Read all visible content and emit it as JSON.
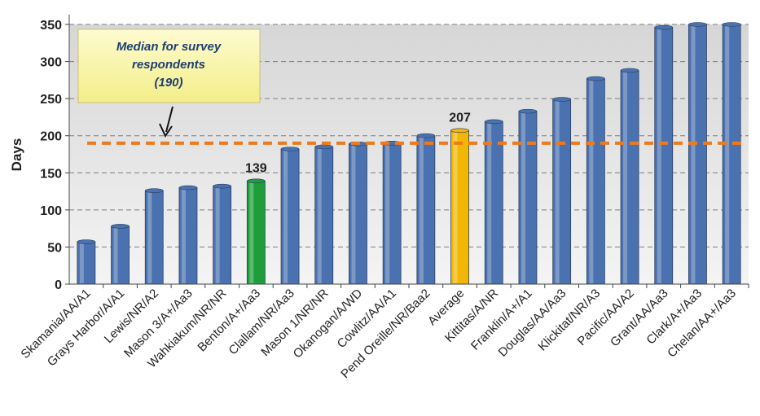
{
  "chart_data": {
    "type": "bar",
    "ylabel": "Days",
    "xlabel": "",
    "title": "",
    "ylim": [
      0,
      350
    ],
    "yticks": [
      0,
      50,
      100,
      150,
      200,
      250,
      300,
      350
    ],
    "grid": true,
    "categories": [
      "Skamania/AA/A1",
      "Grays Harbor/A/A1",
      "Lewis/NR/A2",
      "Mason 3/A+/Aa3",
      "Wahkiakum/NR/NR",
      "Benton/A+/Aa3",
      "Clallam/NR/Aa3",
      "Mason 1/NR/NR",
      "Okanogan/A/WD",
      "Cowlitz/AA/A1",
      "Pend Oreille/NR/Baa2",
      "Average",
      "Kittitas/A/NR",
      "Franklin/A+/A1",
      "Douglas/AA/Aa3",
      "Klickitat/NR/A3",
      "Pacific/AA/A2",
      "Grant/AA/Aa3",
      "Clark/A+/Aa3",
      "Chelan/AA+/Aa3"
    ],
    "values": [
      57,
      78,
      126,
      130,
      132,
      139,
      182,
      185,
      189,
      190,
      200,
      207,
      219,
      233,
      249,
      277,
      288,
      346,
      350,
      350
    ],
    "bar_colors": [
      "#4a72b0",
      "#4a72b0",
      "#4a72b0",
      "#4a72b0",
      "#4a72b0",
      "#1e9e3a",
      "#4a72b0",
      "#4a72b0",
      "#4a72b0",
      "#4a72b0",
      "#4a72b0",
      "#f2b705",
      "#4a72b0",
      "#4a72b0",
      "#4a72b0",
      "#4a72b0",
      "#4a72b0",
      "#4a72b0",
      "#4a72b0",
      "#4a72b0"
    ],
    "data_labels": [
      {
        "category": "Benton/A+/Aa3",
        "text": "139"
      },
      {
        "category": "Average",
        "text": "207"
      }
    ],
    "reference_line": {
      "value": 190,
      "color": "#ee7a1e",
      "style": "dashed"
    },
    "annotation": {
      "lines": [
        "Median for survey",
        "respondents",
        "(190)"
      ],
      "background": "#fbf7a6",
      "arrow_target": "reference-line"
    }
  }
}
